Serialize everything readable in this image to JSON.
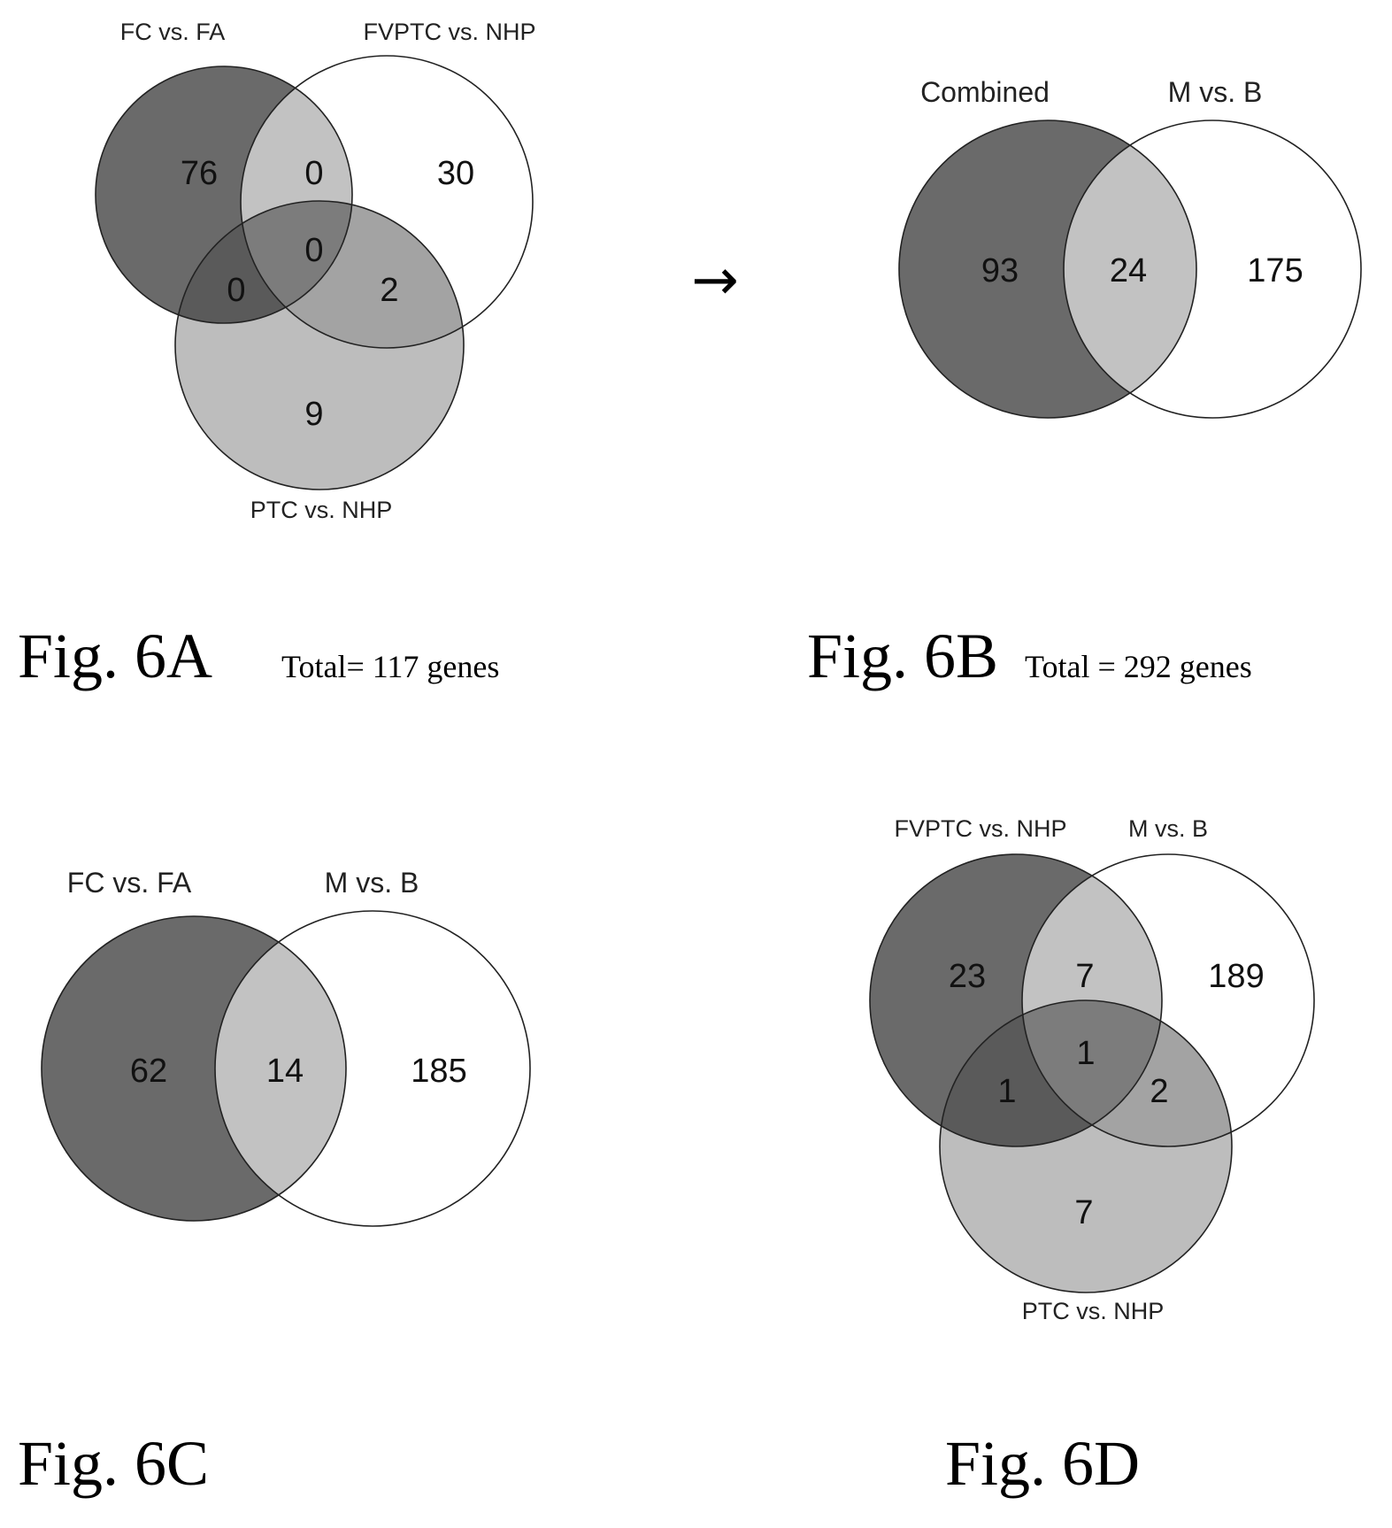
{
  "colors": {
    "dark_fill": "#6a6a6a",
    "medium_fill": "#9c9c9c",
    "light_fill": "#bdbdbd",
    "outline": "#222222",
    "background": "#ffffff"
  },
  "arrow": "→",
  "panels": {
    "a": {
      "caption": "Fig. 6A",
      "total": "Total= 117 genes",
      "sets": {
        "top_left": "FC vs. FA",
        "top_right": "FVPTC vs. NHP",
        "bottom": "PTC vs. NHP"
      },
      "counts": {
        "top_left_only": "76",
        "top_left_top_right": "0",
        "top_right_only": "30",
        "all_three": "0",
        "top_left_bottom": "0",
        "top_right_bottom": "2",
        "bottom_only": "9"
      }
    },
    "b": {
      "caption": "Fig. 6B",
      "total": "Total = 292 genes",
      "sets": {
        "left": "Combined",
        "right": "M vs. B"
      },
      "counts": {
        "left_only": "93",
        "both": "24",
        "right_only": "175"
      }
    },
    "c": {
      "caption": "Fig. 6C",
      "sets": {
        "left": "FC vs. FA",
        "right": "M vs. B"
      },
      "counts": {
        "left_only": "62",
        "both": "14",
        "right_only": "185"
      }
    },
    "d": {
      "caption": "Fig. 6D",
      "sets": {
        "top_left": "FVPTC vs. NHP",
        "top_right": "M vs. B",
        "bottom": "PTC vs. NHP"
      },
      "counts": {
        "top_left_only": "23",
        "top_left_top_right": "7",
        "top_right_only": "189",
        "all_three": "1",
        "top_left_bottom": "1",
        "top_right_bottom": "2",
        "bottom_only": "7"
      }
    }
  }
}
